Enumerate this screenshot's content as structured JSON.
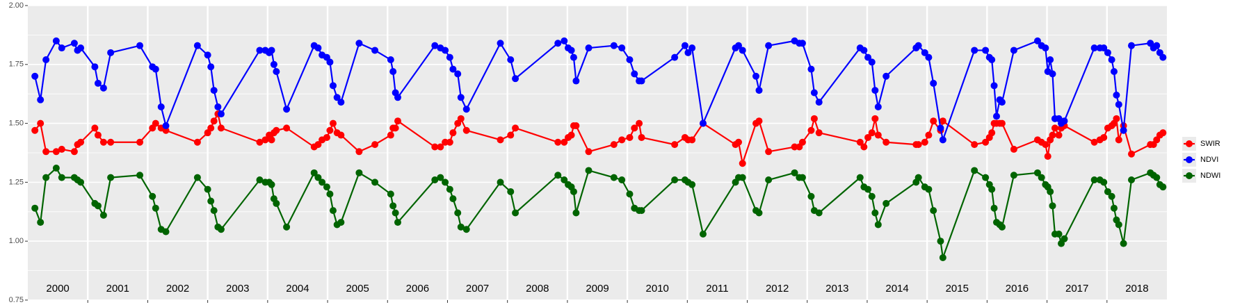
{
  "chart_data": {
    "type": "line",
    "x": [
      2000.118,
      2000.211,
      2000.303,
      2000.474,
      2000.566,
      2000.776,
      2000.829,
      2000.882,
      2001.118,
      2001.171,
      2001.263,
      2001.382,
      2001.868,
      2002.079,
      2002.132,
      2002.224,
      2002.303,
      2002.829,
      2003.0,
      2003.053,
      2003.105,
      2003.171,
      2003.224,
      2003.868,
      2003.961,
      2004.026,
      2004.066,
      2004.105,
      2004.145,
      2004.316,
      2004.776,
      2004.842,
      2004.908,
      2004.987,
      2005.039,
      2005.092,
      2005.158,
      2005.224,
      2005.526,
      2005.789,
      2006.053,
      2006.092,
      2006.132,
      2006.171,
      2006.789,
      2006.882,
      2006.961,
      2007.039,
      2007.092,
      2007.171,
      2007.224,
      2007.316,
      2007.882,
      2008.053,
      2008.132,
      2008.842,
      2008.947,
      2009.013,
      2009.066,
      2009.105,
      2009.145,
      2009.355,
      2009.776,
      2009.908,
      2010.039,
      2010.118,
      2010.197,
      2010.237,
      2010.789,
      2010.961,
      2011.013,
      2011.079,
      2011.263,
      2011.803,
      2011.855,
      2011.921,
      2012.145,
      2012.197,
      2012.355,
      2012.789,
      2012.868,
      2012.921,
      2013.066,
      2013.118,
      2013.197,
      2013.882,
      2013.947,
      2014.013,
      2014.079,
      2014.132,
      2014.184,
      2014.316,
      2014.816,
      2014.855,
      2014.961,
      2015.026,
      2015.105,
      2015.224,
      2015.263,
      2015.789,
      2015.974,
      2016.039,
      2016.079,
      2016.118,
      2016.158,
      2016.211,
      2016.25,
      2016.447,
      2016.842,
      2016.908,
      2016.974,
      2017.013,
      2017.053,
      2017.092,
      2017.132,
      2017.197,
      2017.237,
      2017.289,
      2017.789,
      2017.882,
      2017.947,
      2018.013,
      2018.079,
      2018.118,
      2018.158,
      2018.197,
      2018.276,
      2018.408,
      2018.724,
      2018.776,
      2018.829,
      2018.882,
      2018.934
    ],
    "series": [
      {
        "name": "SWIR",
        "color": "#ff0000",
        "values": [
          1.47,
          1.5,
          1.38,
          1.38,
          1.39,
          1.38,
          1.41,
          1.42,
          1.48,
          1.45,
          1.42,
          1.42,
          1.42,
          1.48,
          1.5,
          1.48,
          1.47,
          1.42,
          1.46,
          1.48,
          1.51,
          1.54,
          1.48,
          1.42,
          1.43,
          1.45,
          1.43,
          1.46,
          1.47,
          1.48,
          1.4,
          1.41,
          1.43,
          1.44,
          1.47,
          1.5,
          1.46,
          1.45,
          1.38,
          1.41,
          1.45,
          1.48,
          1.48,
          1.51,
          1.4,
          1.4,
          1.42,
          1.42,
          1.46,
          1.5,
          1.52,
          1.47,
          1.43,
          1.45,
          1.48,
          1.42,
          1.42,
          1.44,
          1.45,
          1.49,
          1.49,
          1.38,
          1.41,
          1.43,
          1.44,
          1.48,
          1.5,
          1.44,
          1.41,
          1.44,
          1.43,
          1.43,
          1.5,
          1.41,
          1.42,
          1.33,
          1.5,
          1.51,
          1.38,
          1.4,
          1.4,
          1.42,
          1.47,
          1.52,
          1.46,
          1.42,
          1.4,
          1.44,
          1.46,
          1.52,
          1.45,
          1.42,
          1.41,
          1.41,
          1.42,
          1.45,
          1.51,
          1.47,
          1.51,
          1.41,
          1.42,
          1.44,
          1.46,
          1.5,
          1.5,
          1.5,
          1.5,
          1.39,
          1.43,
          1.42,
          1.41,
          1.36,
          1.43,
          1.45,
          1.48,
          1.45,
          1.48,
          1.49,
          1.42,
          1.43,
          1.44,
          1.48,
          1.49,
          1.5,
          1.52,
          1.43,
          1.49,
          1.37,
          1.41,
          1.41,
          1.43,
          1.45,
          1.46
        ]
      },
      {
        "name": "NDVI",
        "color": "#0000ff",
        "values": [
          1.7,
          1.6,
          1.77,
          1.85,
          1.82,
          1.84,
          1.81,
          1.82,
          1.74,
          1.67,
          1.65,
          1.8,
          1.83,
          1.74,
          1.73,
          1.57,
          1.49,
          1.83,
          1.79,
          1.74,
          1.64,
          1.57,
          1.54,
          1.81,
          1.81,
          1.8,
          1.81,
          1.75,
          1.72,
          1.56,
          1.83,
          1.82,
          1.79,
          1.78,
          1.76,
          1.66,
          1.61,
          1.59,
          1.84,
          1.81,
          1.77,
          1.72,
          1.63,
          1.61,
          1.83,
          1.82,
          1.81,
          1.78,
          1.73,
          1.71,
          1.61,
          1.56,
          1.84,
          1.77,
          1.69,
          1.84,
          1.85,
          1.82,
          1.81,
          1.78,
          1.68,
          1.82,
          1.83,
          1.82,
          1.77,
          1.71,
          1.68,
          1.68,
          1.78,
          1.83,
          1.8,
          1.82,
          1.5,
          1.82,
          1.83,
          1.81,
          1.7,
          1.64,
          1.83,
          1.85,
          1.84,
          1.84,
          1.73,
          1.63,
          1.59,
          1.82,
          1.81,
          1.78,
          1.76,
          1.64,
          1.57,
          1.7,
          1.82,
          1.83,
          1.8,
          1.78,
          1.67,
          1.48,
          1.43,
          1.81,
          1.81,
          1.78,
          1.77,
          1.66,
          1.53,
          1.6,
          1.59,
          1.81,
          1.85,
          1.83,
          1.82,
          1.72,
          1.77,
          1.71,
          1.52,
          1.52,
          1.5,
          1.51,
          1.82,
          1.82,
          1.82,
          1.8,
          1.77,
          1.72,
          1.62,
          1.58,
          1.47,
          1.83,
          1.84,
          1.82,
          1.83,
          1.8,
          1.78
        ]
      },
      {
        "name": "NDWI",
        "color": "#006400",
        "values": [
          1.14,
          1.08,
          1.27,
          1.31,
          1.27,
          1.27,
          1.26,
          1.25,
          1.16,
          1.15,
          1.11,
          1.27,
          1.28,
          1.19,
          1.14,
          1.05,
          1.04,
          1.27,
          1.22,
          1.17,
          1.13,
          1.06,
          1.05,
          1.26,
          1.25,
          1.25,
          1.24,
          1.18,
          1.16,
          1.06,
          1.29,
          1.27,
          1.25,
          1.23,
          1.2,
          1.13,
          1.07,
          1.08,
          1.29,
          1.25,
          1.2,
          1.15,
          1.12,
          1.08,
          1.26,
          1.27,
          1.25,
          1.22,
          1.18,
          1.12,
          1.06,
          1.05,
          1.25,
          1.21,
          1.12,
          1.28,
          1.26,
          1.24,
          1.23,
          1.21,
          1.12,
          1.3,
          1.27,
          1.26,
          1.2,
          1.14,
          1.13,
          1.13,
          1.26,
          1.26,
          1.25,
          1.24,
          1.03,
          1.25,
          1.27,
          1.27,
          1.13,
          1.12,
          1.26,
          1.29,
          1.27,
          1.27,
          1.19,
          1.13,
          1.12,
          1.27,
          1.23,
          1.22,
          1.19,
          1.12,
          1.07,
          1.16,
          1.25,
          1.27,
          1.23,
          1.22,
          1.13,
          1.0,
          0.93,
          1.3,
          1.27,
          1.24,
          1.22,
          1.14,
          1.08,
          1.07,
          1.06,
          1.28,
          1.29,
          1.27,
          1.24,
          1.23,
          1.21,
          1.15,
          1.03,
          1.03,
          0.99,
          1.01,
          1.26,
          1.26,
          1.25,
          1.21,
          1.19,
          1.14,
          1.09,
          1.07,
          0.99,
          1.26,
          1.29,
          1.28,
          1.27,
          1.24,
          1.23
        ]
      }
    ],
    "year_labels": [
      "2000",
      "2001",
      "2002",
      "2003",
      "2004",
      "2005",
      "2006",
      "2007",
      "2008",
      "2009",
      "2010",
      "2011",
      "2012",
      "2013",
      "2014",
      "2015",
      "2016",
      "2017",
      "2018"
    ],
    "xlim": [
      2000,
      2019
    ],
    "xticks": [
      2001,
      2002,
      2003,
      2004,
      2005,
      2006,
      2007,
      2008,
      2009,
      2010,
      2011,
      2012,
      2013,
      2014,
      2015,
      2016,
      2017,
      2018
    ],
    "ylim": [
      0.75,
      2.0
    ],
    "yticks": [
      {
        "value": 0.75,
        "label": "0.75"
      },
      {
        "value": 1.0,
        "label": "1.00"
      },
      {
        "value": 1.25,
        "label": "1.25"
      },
      {
        "value": 1.5,
        "label": "1.50"
      },
      {
        "value": 1.75,
        "label": "1.75"
      },
      {
        "value": 2.0,
        "label": "2.00"
      }
    ],
    "grid": true,
    "legend": "right"
  }
}
